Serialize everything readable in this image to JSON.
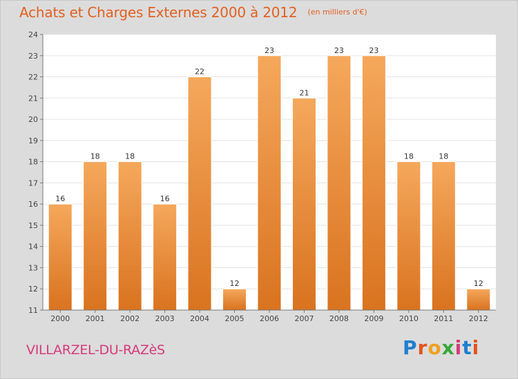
{
  "header": {
    "title": "Achats et Charges Externes 2000 à 2012",
    "unit_note": "(en milliers d'€)"
  },
  "footer": {
    "commune": "VILLARZEL-DU-RAZèS",
    "logo_text": "Proxiti",
    "logo_colors": [
      "#1f7fd0",
      "#e4541c",
      "#f0a020",
      "#36a836",
      "#d63a7a",
      "#1f7fd0",
      "#e4541c"
    ]
  },
  "colors": {
    "bar_top": "#f5a85c",
    "bar_bottom": "#d9731f",
    "bar_edge": "#ffffff",
    "title": "#e2601f",
    "commune": "#d63a7a",
    "background": "#dcdcdc"
  },
  "chart_data": {
    "type": "bar",
    "title": "Achats et Charges Externes 2000 à 2012",
    "subtitle": "(en milliers d'€)",
    "categories": [
      "2000",
      "2001",
      "2002",
      "2003",
      "2004",
      "2005",
      "2006",
      "2007",
      "2008",
      "2009",
      "2010",
      "2011",
      "2012"
    ],
    "values": [
      16,
      18,
      18,
      16,
      22,
      12,
      23,
      21,
      23,
      23,
      18,
      18,
      12
    ],
    "data_labels": [
      "16",
      "18",
      "18",
      "16",
      "22",
      "12",
      "23",
      "21",
      "23",
      "23",
      "18",
      "18",
      "12"
    ],
    "ylim": [
      11,
      24
    ],
    "yticks": [
      "11",
      "12",
      "13",
      "14",
      "15",
      "16",
      "17",
      "18",
      "19",
      "20",
      "21",
      "22",
      "23",
      "24"
    ],
    "xlabel": "",
    "ylabel": "",
    "grid": true
  }
}
